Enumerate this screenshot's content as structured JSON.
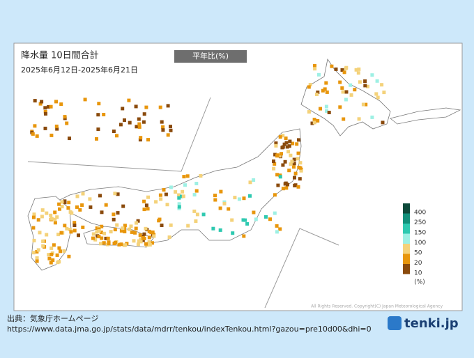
{
  "header": {
    "title": "降水量  10日間合計",
    "period": "2025年6月12日-2025年6月21日",
    "legend_title": "平年比(%)"
  },
  "legend": {
    "items": [
      {
        "label": 400,
        "color": "#0d4a3a"
      },
      {
        "label": 250,
        "color": "#12907a"
      },
      {
        "label": 150,
        "color": "#2ec9b0"
      },
      {
        "label": 100,
        "color": "#9ef0e4"
      },
      {
        "label": 50,
        "color": "#f4d27a"
      },
      {
        "label": 20,
        "color": "#e8960c"
      },
      {
        "label": 10,
        "color": "#8a4a0c"
      }
    ],
    "unit": "(%)"
  },
  "copyright": "All Rights Reserved. Copyright(C) Japan Meteorological Agency",
  "footer": {
    "source": "出典：気象庁ホームページ",
    "url": "https://www.data.jma.go.jp/stats/data/mdrr/tenkou/indexTenkou.html?gazou=pre10d00&dhi=0",
    "brand": "tenki.jp"
  }
}
